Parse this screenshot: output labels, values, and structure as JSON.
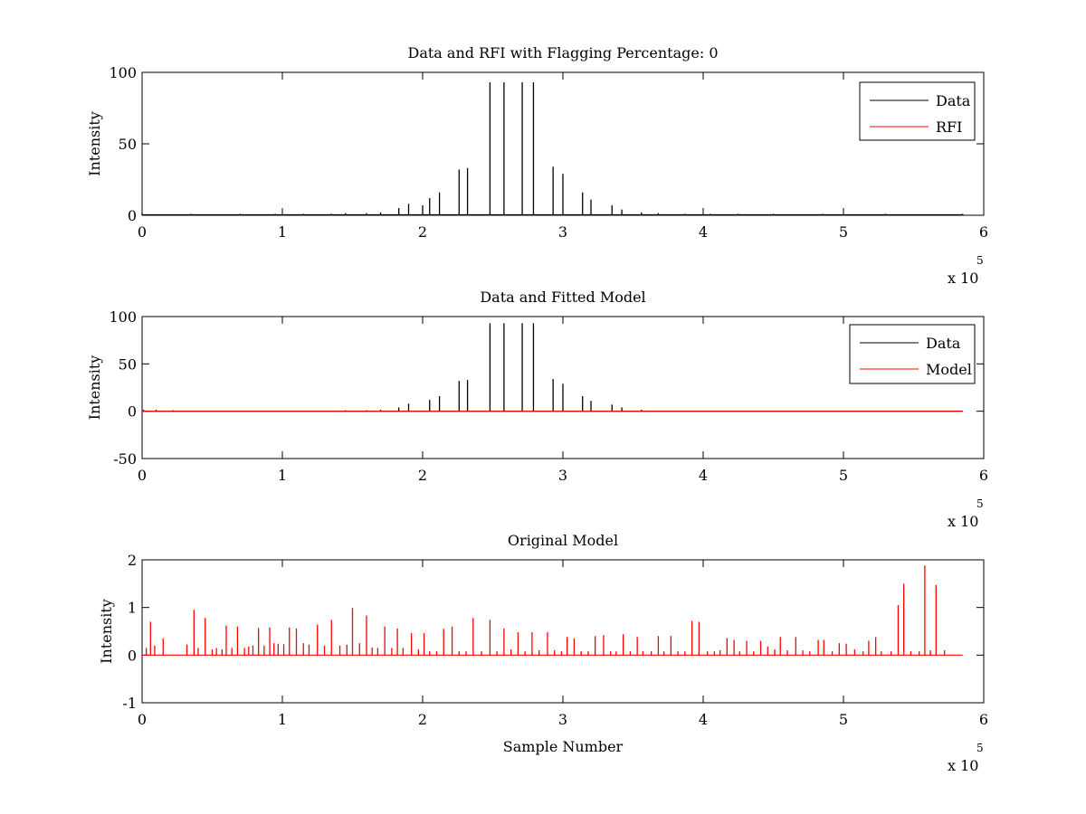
{
  "chart_data": [
    {
      "type": "line",
      "title": "Data and RFI with Flagging Percentage: 0",
      "xlabel": "",
      "ylabel": "Intensity",
      "xlim": [
        0,
        600000
      ],
      "ylim": [
        0,
        100
      ],
      "xticks": [
        0,
        1,
        2,
        3,
        4,
        5,
        6
      ],
      "xtick_labels": [
        "0",
        "1",
        "2",
        "3",
        "4",
        "5",
        "6"
      ],
      "yticks": [
        0,
        50,
        100
      ],
      "ytick_labels": [
        "0",
        "50",
        "100"
      ],
      "x_multiplier_text": "x 10",
      "x_multiplier_exp": "5",
      "legend": {
        "position": "top-right",
        "entries": [
          {
            "label": "Data",
            "color": "#000000"
          },
          {
            "label": "RFI",
            "color": "#ff0000"
          }
        ]
      },
      "series": [
        {
          "name": "Data",
          "color": "#000000",
          "style": "spikes",
          "baseline": 0.3,
          "x": [
            0,
            35000,
            70000,
            95000,
            115000,
            135000,
            145000,
            160000,
            170000,
            183000,
            190000,
            200000,
            205000,
            212000,
            226000,
            232000,
            248000,
            258000,
            271000,
            279000,
            293000,
            300000,
            314000,
            320000,
            335000,
            342000,
            356000,
            368000,
            387000,
            405000,
            425000,
            450000,
            485000,
            530000,
            585000
          ],
          "y": [
            1.5,
            1,
            1,
            1,
            1,
            1,
            1.5,
            1.5,
            2,
            5,
            8,
            7,
            12,
            16,
            32,
            33,
            93,
            93,
            93,
            93,
            34,
            29,
            16,
            11,
            7,
            4,
            2,
            1.5,
            1,
            1,
            1,
            1,
            1,
            1,
            1
          ]
        },
        {
          "name": "RFI",
          "color": "#ff0000",
          "style": "line",
          "x": [],
          "y": []
        }
      ]
    },
    {
      "type": "line",
      "title": "Data and Fitted Model",
      "xlabel": "",
      "ylabel": "Intensity",
      "xlim": [
        0,
        600000
      ],
      "ylim": [
        -50,
        100
      ],
      "xticks": [
        0,
        1,
        2,
        3,
        4,
        5,
        6
      ],
      "xtick_labels": [
        "0",
        "1",
        "2",
        "3",
        "4",
        "5",
        "6"
      ],
      "yticks": [
        -50,
        0,
        50,
        100
      ],
      "ytick_labels": [
        "-50",
        "0",
        "50",
        "100"
      ],
      "x_multiplier_text": "x 10",
      "x_multiplier_exp": "5",
      "legend": {
        "position": "top-right",
        "entries": [
          {
            "label": "Data",
            "color": "#000000"
          },
          {
            "label": "Model",
            "color": "#ff0000"
          }
        ]
      },
      "series": [
        {
          "name": "Data",
          "color": "#000000",
          "style": "spikes",
          "baseline": 0,
          "x": [
            1000,
            10000,
            22000,
            145000,
            160000,
            170000,
            183000,
            190000,
            205000,
            212000,
            226000,
            232000,
            248000,
            258000,
            271000,
            279000,
            293000,
            300000,
            314000,
            320000,
            335000,
            342000,
            356000
          ],
          "y": [
            1.5,
            1.5,
            1,
            1,
            1,
            1.5,
            4,
            8,
            12,
            16,
            32,
            33,
            93,
            93,
            93,
            93,
            34,
            29,
            16,
            11,
            7,
            4,
            1.5
          ]
        },
        {
          "name": "Model",
          "color": "#ff0000",
          "style": "line",
          "x": [
            0,
            585000
          ],
          "y": [
            0,
            0
          ]
        }
      ]
    },
    {
      "type": "line",
      "title": "Original Model",
      "xlabel": "Sample Number",
      "ylabel": "Intensity",
      "xlim": [
        0,
        600000
      ],
      "ylim": [
        -1,
        2
      ],
      "xticks": [
        0,
        1,
        2,
        3,
        4,
        5,
        6
      ],
      "xtick_labels": [
        "0",
        "1",
        "2",
        "3",
        "4",
        "5",
        "6"
      ],
      "yticks": [
        -1,
        0,
        1,
        2
      ],
      "ytick_labels": [
        "-1",
        "0",
        "1",
        "2"
      ],
      "x_multiplier_text": "x 10",
      "x_multiplier_exp": "5",
      "series": [
        {
          "name": "",
          "color": "#ff0000",
          "style": "spikes",
          "baseline": 0,
          "x": [
            3000,
            6000,
            9000,
            15000,
            32000,
            37000,
            40000,
            45000,
            50000,
            53000,
            57000,
            60000,
            64000,
            68000,
            73000,
            76000,
            79000,
            83000,
            87000,
            91000,
            94000,
            97000,
            101000,
            105000,
            110000,
            115000,
            119000,
            125000,
            130000,
            135000,
            141000,
            146000,
            150000,
            155000,
            160000,
            164000,
            168000,
            173000,
            178000,
            182000,
            186000,
            192000,
            197000,
            201000,
            205000,
            210000,
            215000,
            221000,
            226000,
            231000,
            236000,
            242000,
            248000,
            253000,
            258000,
            263000,
            268000,
            273000,
            278000,
            283000,
            289000,
            294000,
            299000,
            303000,
            308000,
            313000,
            318000,
            323000,
            329000,
            334000,
            338000,
            343000,
            348000,
            353000,
            357000,
            363000,
            368000,
            372000,
            377000,
            382000,
            387000,
            392000,
            397000,
            403000,
            408000,
            412000,
            417000,
            422000,
            426000,
            431000,
            436000,
            441000,
            446000,
            451000,
            455000,
            460000,
            466000,
            471000,
            476000,
            482000,
            486000,
            492000,
            497000,
            502000,
            508000,
            514000,
            518000,
            523000,
            527000,
            534000,
            539000,
            543000,
            548000,
            554000,
            558000,
            562000,
            566000,
            572000
          ],
          "y": [
            0.15,
            0.7,
            0.2,
            0.35,
            0.22,
            0.95,
            0.15,
            0.78,
            0.12,
            0.15,
            0.12,
            0.62,
            0.15,
            0.6,
            0.15,
            0.18,
            0.2,
            0.57,
            0.2,
            0.58,
            0.25,
            0.24,
            0.23,
            0.58,
            0.56,
            0.25,
            0.22,
            0.64,
            0.2,
            0.74,
            0.2,
            0.22,
            0.99,
            0.25,
            0.83,
            0.16,
            0.15,
            0.6,
            0.15,
            0.56,
            0.15,
            0.46,
            0.12,
            0.46,
            0.08,
            0.08,
            0.55,
            0.6,
            0.08,
            0.08,
            0.78,
            0.08,
            0.74,
            0.08,
            0.56,
            0.12,
            0.48,
            0.08,
            0.48,
            0.1,
            0.48,
            0.1,
            0.08,
            0.38,
            0.35,
            0.08,
            0.08,
            0.4,
            0.42,
            0.08,
            0.08,
            0.44,
            0.08,
            0.38,
            0.08,
            0.08,
            0.4,
            0.08,
            0.4,
            0.08,
            0.08,
            0.72,
            0.7,
            0.08,
            0.08,
            0.1,
            0.36,
            0.32,
            0.08,
            0.3,
            0.08,
            0.3,
            0.18,
            0.12,
            0.38,
            0.1,
            0.38,
            0.1,
            0.08,
            0.32,
            0.32,
            0.08,
            0.25,
            0.24,
            0.12,
            0.08,
            0.3,
            0.38,
            0.08,
            0.08,
            1.05,
            1.5,
            0.08,
            0.08,
            1.88,
            0.1,
            1.47,
            0.1
          ]
        }
      ]
    }
  ]
}
